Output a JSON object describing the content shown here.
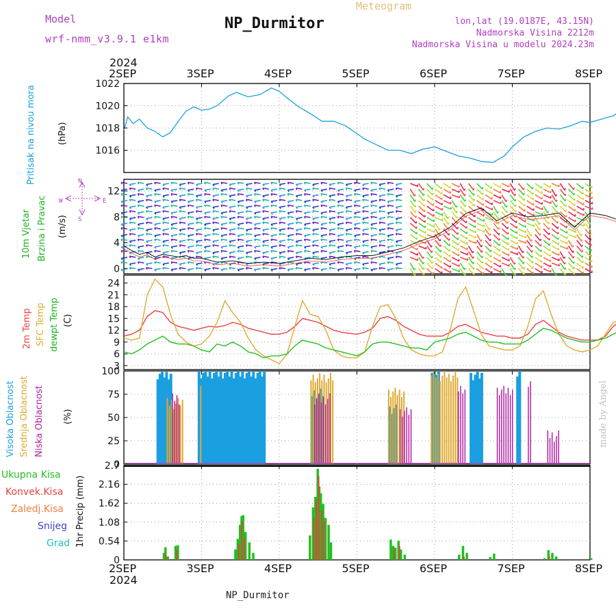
{
  "header": {
    "model_label": "Model",
    "model_name": "wrf-nmm_v3.9.1 e1km",
    "product": "Meteogram",
    "station": "NP_Durmitor",
    "lonlat": "lon,lat (19.0187E, 43.15N)",
    "altitude": "Nadmorska Visina 2212m",
    "model_altitude": "Nadmorska Visina u modelu 2024.23m",
    "credit": "made by Angel",
    "footer_station": "NP_Durmitor"
  },
  "axis": {
    "year": "2024",
    "days": [
      "2SEP",
      "3SEP",
      "4SEP",
      "5SEP",
      "6SEP",
      "7SEP",
      "8SEP"
    ]
  },
  "colors": {
    "pressure": "#1a9fe0",
    "temp2m": "#e84040",
    "sfc": "#e0a830",
    "dewpt": "#20c020",
    "high_cloud": "#1a9fe0",
    "mid_cloud": "#e0a830",
    "low_cloud": "#b020a0",
    "total_precip": "#20c020",
    "conv_precip": "#e84040",
    "frozen": "#f08040",
    "snow": "#4040d0",
    "hail": "#20c0c0",
    "magenta": "#b040c0"
  },
  "chart_data": [
    {
      "type": "line",
      "panel": "pressure",
      "ylabel": [
        "Pritisak na nivou mora",
        "(hPa)"
      ],
      "yticks": [
        "1016",
        "1018",
        "1020",
        "1022"
      ],
      "ylim": [
        1014,
        1022
      ],
      "x_days": [
        0.0,
        0.05,
        0.12,
        0.2,
        0.3,
        0.4,
        0.5,
        0.6,
        0.7,
        0.8,
        0.9,
        1.0,
        1.1,
        1.2,
        1.35,
        1.45,
        1.6,
        1.75,
        1.9,
        2.0,
        2.1,
        2.25,
        2.4,
        2.55,
        2.7,
        2.85,
        3.0,
        3.1,
        3.25,
        3.4,
        3.55,
        3.7,
        3.85,
        4.0,
        4.15,
        4.3,
        4.45,
        4.6,
        4.75,
        4.9,
        5.0,
        5.15,
        5.3,
        5.45,
        5.6,
        5.75,
        5.9,
        6.0,
        6.15,
        6.3,
        6.45,
        6.6,
        6.75,
        6.85,
        6.95,
        7.0
      ],
      "values": [
        1017.8,
        1019.0,
        1018.4,
        1018.8,
        1018.0,
        1017.7,
        1017.2,
        1017.6,
        1018.6,
        1019.5,
        1019.9,
        1019.6,
        1019.7,
        1020.0,
        1020.9,
        1021.2,
        1020.8,
        1021.0,
        1021.6,
        1021.3,
        1020.7,
        1019.9,
        1019.3,
        1018.6,
        1018.6,
        1018.2,
        1017.5,
        1017.0,
        1016.5,
        1016.0,
        1016.0,
        1015.7,
        1016.1,
        1016.3,
        1015.9,
        1015.5,
        1015.3,
        1015.0,
        1014.9,
        1015.5,
        1016.3,
        1017.2,
        1017.7,
        1018.0,
        1017.9,
        1018.2,
        1018.6,
        1018.5,
        1018.8,
        1019.1,
        1019.8,
        1020.3,
        1020.2,
        1020.1,
        1019.6,
        1019.0
      ]
    },
    {
      "type": "line",
      "panel": "wind",
      "ylabel": [
        "10m Vjetar",
        "Brzina i Pravac",
        "(m/s)"
      ],
      "compass": [
        "N",
        "W",
        "E",
        "S"
      ],
      "yticks": [
        "0",
        "4",
        "8",
        "12"
      ],
      "ylim": [
        -0.8,
        13.8
      ],
      "x_days": [
        0.0,
        0.1,
        0.2,
        0.3,
        0.4,
        0.5,
        0.6,
        0.7,
        0.8,
        0.9,
        1.0,
        1.2,
        1.4,
        1.6,
        1.8,
        2.0,
        2.2,
        2.4,
        2.6,
        2.8,
        3.0,
        3.2,
        3.4,
        3.6,
        3.8,
        4.0,
        4.2,
        4.4,
        4.6,
        4.8,
        5.0,
        5.2,
        5.4,
        5.6,
        5.8,
        6.0,
        6.2,
        6.4,
        6.6,
        6.8,
        7.0
      ],
      "values": [
        3.5,
        2.8,
        2.2,
        2.5,
        1.8,
        2.2,
        2.0,
        1.8,
        2.0,
        1.6,
        1.6,
        1.0,
        1.2,
        0.8,
        1.0,
        0.8,
        1.2,
        1.6,
        1.4,
        1.8,
        2.0,
        2.0,
        2.6,
        3.2,
        4.2,
        5.0,
        6.4,
        8.5,
        9.4,
        7.4,
        8.6,
        8.0,
        8.2,
        8.6,
        6.4,
        8.6,
        8.2,
        7.4,
        7.4,
        7.0,
        5.5
      ]
    },
    {
      "type": "line",
      "panel": "temperature",
      "ylabel": [
        "2m Temp",
        "SFC Temp",
        "dewpt Temp",
        "(C)"
      ],
      "yticks": [
        "3",
        "6",
        "9",
        "12",
        "15",
        "18",
        "21",
        "24"
      ],
      "ylim": [
        2,
        26
      ],
      "x_days": [
        0.0,
        0.1,
        0.2,
        0.3,
        0.4,
        0.5,
        0.6,
        0.7,
        0.8,
        0.9,
        1.0,
        1.1,
        1.2,
        1.3,
        1.4,
        1.5,
        1.6,
        1.7,
        1.8,
        1.9,
        2.0,
        2.1,
        2.2,
        2.3,
        2.4,
        2.5,
        2.6,
        2.7,
        2.8,
        2.9,
        3.0,
        3.1,
        3.2,
        3.3,
        3.4,
        3.5,
        3.6,
        3.7,
        3.8,
        3.9,
        4.0,
        4.1,
        4.2,
        4.3,
        4.4,
        4.5,
        4.6,
        4.7,
        4.8,
        4.9,
        5.0,
        5.1,
        5.2,
        5.3,
        5.4,
        5.5,
        5.6,
        5.7,
        5.8,
        5.9,
        6.0,
        6.1,
        6.2,
        6.3,
        6.4,
        6.5,
        6.6,
        6.7,
        6.8,
        6.9,
        7.0
      ],
      "series": [
        {
          "key": "t2m",
          "values": [
            10.5,
            11.0,
            12.0,
            15.5,
            17.0,
            16.5,
            14.0,
            13.0,
            12.5,
            12.0,
            12.5,
            13.0,
            12.8,
            13.2,
            14.0,
            13.5,
            12.5,
            12.0,
            11.5,
            11.0,
            11.0,
            11.5,
            13.0,
            15.0,
            14.5,
            14.0,
            13.0,
            12.0,
            11.5,
            11.2,
            11.0,
            11.5,
            12.5,
            15.0,
            15.5,
            14.5,
            13.0,
            12.0,
            11.0,
            10.5,
            10.5,
            10.5,
            11.5,
            13.0,
            13.5,
            12.5,
            11.5,
            11.0,
            10.5,
            10.5,
            10.0,
            10.0,
            11.0,
            13.5,
            14.5,
            13.0,
            11.5,
            10.5,
            10.0,
            9.5,
            9.5,
            9.5,
            10.5,
            13.0,
            14.5,
            13.5,
            12.0,
            11.0,
            10.5,
            10.0,
            10.5
          ]
        },
        {
          "key": "sfc",
          "values": [
            10.0,
            9.5,
            10.0,
            21.0,
            25.0,
            23.0,
            16.0,
            11.0,
            9.0,
            8.0,
            8.5,
            10.5,
            14.0,
            19.5,
            16.5,
            14.0,
            10.0,
            7.0,
            5.5,
            4.5,
            3.5,
            6.0,
            13.0,
            19.5,
            16.0,
            15.5,
            12.0,
            7.0,
            5.5,
            5.0,
            5.0,
            6.5,
            13.0,
            18.0,
            18.5,
            15.0,
            10.0,
            7.0,
            6.0,
            5.5,
            5.5,
            6.5,
            12.0,
            20.0,
            23.0,
            17.0,
            11.0,
            8.0,
            7.5,
            7.0,
            7.0,
            8.0,
            13.0,
            20.0,
            22.0,
            16.0,
            11.0,
            8.0,
            7.0,
            6.5,
            7.0,
            8.0,
            11.0,
            14.0,
            14.5,
            11.5,
            9.0,
            7.0,
            6.5,
            6.0,
            11.0
          ]
        },
        {
          "key": "dewpt",
          "values": [
            6.5,
            6.0,
            7.0,
            8.5,
            9.5,
            10.5,
            9.0,
            8.5,
            8.5,
            8.0,
            7.0,
            6.5,
            8.5,
            8.0,
            9.0,
            8.0,
            6.5,
            6.0,
            5.0,
            5.5,
            5.5,
            6.0,
            8.0,
            9.5,
            9.0,
            8.5,
            7.5,
            7.0,
            6.5,
            6.0,
            5.5,
            6.5,
            8.5,
            9.0,
            9.0,
            8.5,
            8.0,
            7.5,
            7.5,
            7.0,
            9.0,
            9.5,
            10.0,
            11.0,
            11.5,
            10.5,
            9.5,
            9.0,
            9.0,
            8.5,
            8.5,
            8.5,
            9.5,
            11.0,
            12.5,
            12.0,
            11.0,
            10.0,
            9.5,
            9.0,
            9.0,
            9.5,
            10.0,
            11.0,
            12.0,
            11.5,
            10.5,
            9.5,
            7.0,
            6.5,
            10.0
          ]
        }
      ]
    },
    {
      "type": "bar",
      "panel": "clouds",
      "ylabel": [
        "Visoka Oblacnost",
        "Srednja Oblacnost",
        "Niska Oblacnost",
        "(%)"
      ],
      "yticks": [
        "0",
        "25",
        "50",
        "75",
        "100"
      ],
      "ylim": [
        0,
        100
      ],
      "series": [
        {
          "key": "high",
          "segments": [
            [
              0.42,
              0.6,
              97
            ],
            [
              0.62,
              0.64,
              48
            ],
            [
              0.95,
              1.8,
              98
            ],
            [
              2.4,
              2.55,
              75
            ],
            [
              3.4,
              3.5,
              60
            ],
            [
              3.95,
              4.05,
              98
            ],
            [
              4.45,
              4.6,
              96
            ],
            [
              5.05,
              5.1,
              98
            ],
            [
              6.85,
              7.0,
              98
            ]
          ]
        },
        {
          "key": "mid",
          "segments": [
            [
              0.55,
              0.75,
              65
            ],
            [
              0.98,
              1.0,
              90
            ],
            [
              2.4,
              2.7,
              92
            ],
            [
              3.4,
              3.6,
              78
            ],
            [
              3.95,
              4.3,
              95
            ]
          ]
        },
        {
          "key": "low",
          "segments": [
            [
              0.62,
              0.72,
              70
            ],
            [
              2.45,
              2.65,
              70
            ],
            [
              3.55,
              3.7,
              55
            ],
            [
              4.3,
              4.4,
              78
            ],
            [
              4.8,
              5.0,
              80
            ],
            [
              5.2,
              5.25,
              85
            ],
            [
              5.45,
              5.6,
              30
            ]
          ]
        }
      ]
    },
    {
      "type": "bar",
      "panel": "precip",
      "ylabel": [
        "1hr Precip (mm)"
      ],
      "legend": [
        "Ukupna Kisa",
        "Konvek.Kisa",
        "Zaledj.Kisa",
        "Snijeg",
        "Grad"
      ],
      "yticks": [
        "0",
        "0.54",
        "1.08",
        "1.62",
        "2.16",
        "2.7"
      ],
      "ylim": [
        0,
        2.7
      ],
      "total": [
        [
          0.5,
          0.2
        ],
        [
          0.52,
          0.36
        ],
        [
          0.55,
          0.1
        ],
        [
          0.65,
          0.4
        ],
        [
          0.68,
          0.42
        ],
        [
          1.42,
          0.3
        ],
        [
          1.45,
          0.6
        ],
        [
          1.48,
          1.0
        ],
        [
          1.5,
          1.25
        ],
        [
          1.52,
          1.28
        ],
        [
          1.55,
          0.8
        ],
        [
          1.6,
          0.5
        ],
        [
          1.65,
          0.2
        ],
        [
          2.38,
          0.7
        ],
        [
          2.42,
          1.5
        ],
        [
          2.45,
          1.8
        ],
        [
          2.48,
          2.6
        ],
        [
          2.5,
          2.1
        ],
        [
          2.52,
          1.9
        ],
        [
          2.55,
          1.6
        ],
        [
          2.58,
          1.2
        ],
        [
          2.62,
          1.0
        ],
        [
          2.65,
          0.5
        ],
        [
          3.42,
          0.58
        ],
        [
          3.45,
          0.4
        ],
        [
          3.48,
          0.35
        ],
        [
          3.52,
          0.55
        ],
        [
          3.55,
          0.3
        ],
        [
          3.6,
          0.15
        ],
        [
          4.3,
          0.15
        ],
        [
          4.35,
          0.4
        ],
        [
          4.4,
          0.2
        ],
        [
          4.7,
          0.08
        ],
        [
          4.75,
          0.18
        ],
        [
          5.4,
          0.05
        ],
        [
          5.45,
          0.28
        ],
        [
          5.5,
          0.2
        ],
        [
          5.55,
          0.1
        ],
        [
          6.0,
          0.05
        ]
      ],
      "convective": [
        [
          0.52,
          0.18
        ],
        [
          0.66,
          0.3
        ],
        [
          1.46,
          0.45
        ],
        [
          1.5,
          1.1
        ],
        [
          1.53,
          0.6
        ],
        [
          2.43,
          1.2
        ],
        [
          2.46,
          1.7
        ],
        [
          2.49,
          2.4
        ],
        [
          2.53,
          1.4
        ],
        [
          2.56,
          1.1
        ],
        [
          3.46,
          0.3
        ],
        [
          3.53,
          0.4
        ],
        [
          4.36,
          0.1
        ],
        [
          5.46,
          0.1
        ]
      ]
    }
  ]
}
